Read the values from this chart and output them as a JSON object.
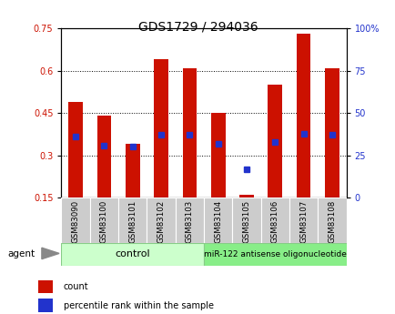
{
  "title": "GDS1729 / 294036",
  "samples": [
    "GSM83090",
    "GSM83100",
    "GSM83101",
    "GSM83102",
    "GSM83103",
    "GSM83104",
    "GSM83105",
    "GSM83106",
    "GSM83107",
    "GSM83108"
  ],
  "count_values": [
    0.49,
    0.44,
    0.34,
    0.64,
    0.61,
    0.45,
    0.16,
    0.55,
    0.73,
    0.61
  ],
  "percentile_values": [
    36,
    31,
    30,
    37,
    37,
    32,
    17,
    33,
    38,
    37
  ],
  "ylim_left": [
    0.15,
    0.75
  ],
  "ylim_right": [
    0,
    100
  ],
  "yticks_left": [
    0.15,
    0.3,
    0.45,
    0.6,
    0.75
  ],
  "yticks_right": [
    0,
    25,
    50,
    75,
    100
  ],
  "ytick_labels_left": [
    "0.15",
    "0.3",
    "0.45",
    "0.6",
    "0.75"
  ],
  "ytick_labels_right": [
    "0",
    "25",
    "50",
    "75",
    "100%"
  ],
  "bar_color": "#cc1100",
  "dot_color": "#2233cc",
  "bar_width": 0.5,
  "bar_bottom": 0.15,
  "control_label": "control",
  "treatment_label": "miR-122 antisense oligonucleotide",
  "agent_label": "agent",
  "legend_count_label": "count",
  "legend_percentile_label": "percentile rank within the sample",
  "control_bg": "#ccffcc",
  "treatment_bg": "#88ee88",
  "sample_bg": "#cccccc",
  "title_fontsize": 10,
  "tick_fontsize": 7,
  "label_fontsize": 7.5
}
